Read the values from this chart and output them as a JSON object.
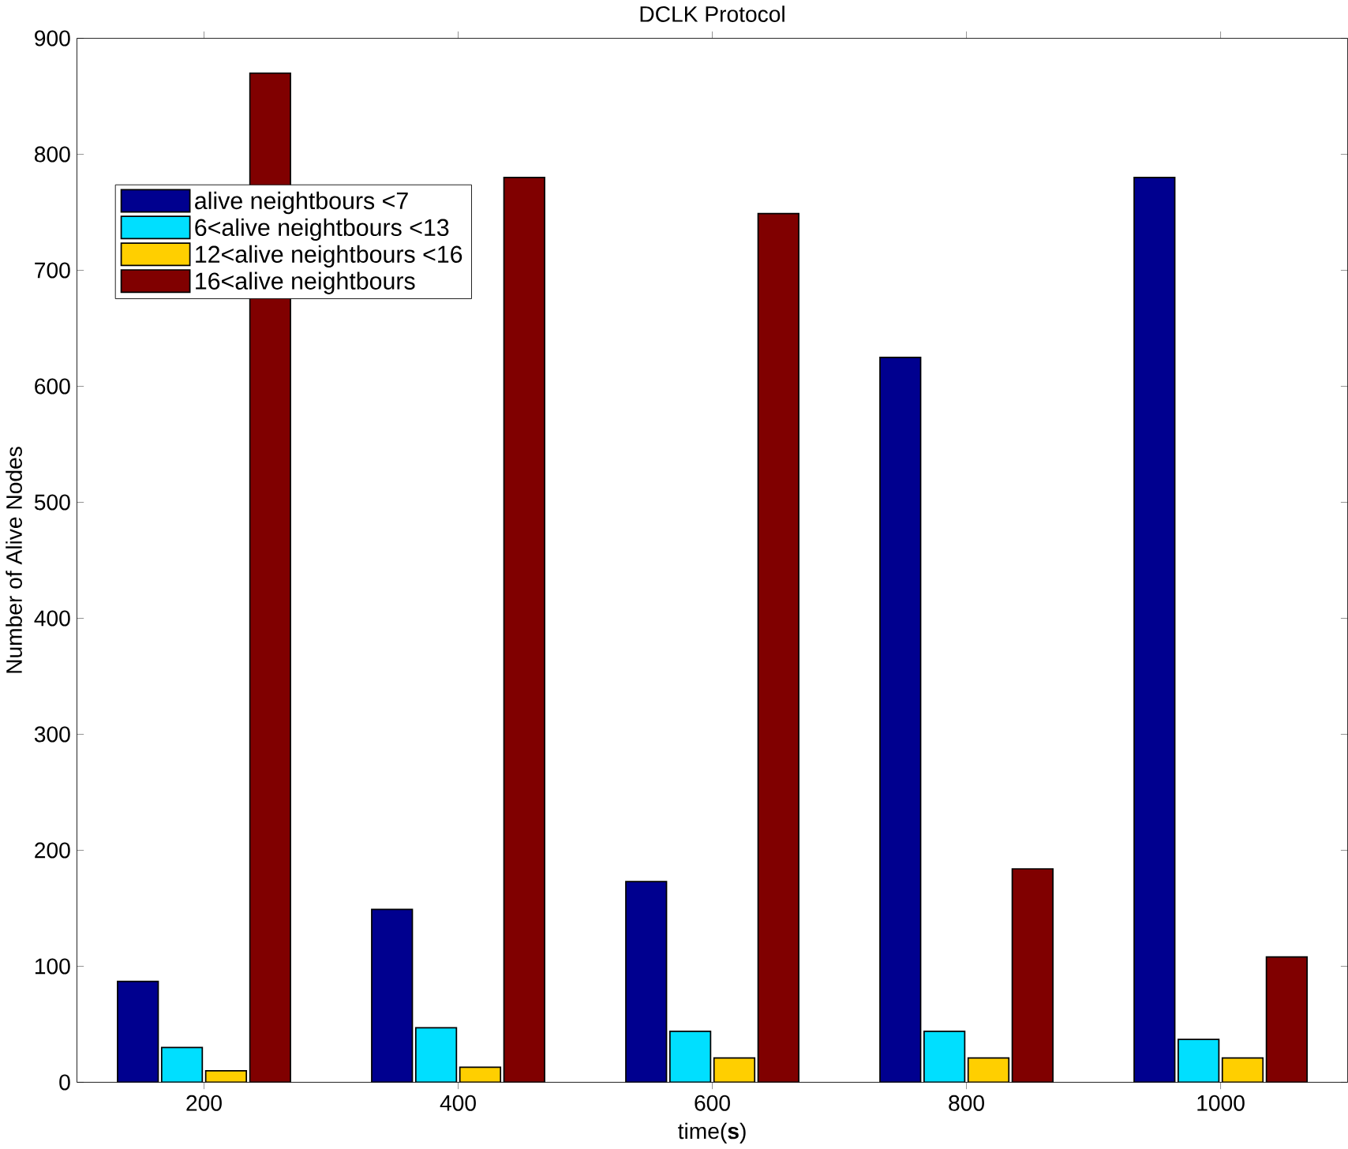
{
  "chart_data": {
    "type": "bar",
    "title": "DCLK Protocol",
    "xlabel": "time(**s**)",
    "ylabel": "Number of Alive Nodes",
    "categories": [
      "200",
      "400",
      "600",
      "800",
      "1000"
    ],
    "series": [
      {
        "name": "alive neightbours <7",
        "color": "#00008f",
        "values": [
          87,
          149,
          173,
          625,
          780
        ]
      },
      {
        "name": "6<alive neightbours <13",
        "color": "#00dfff",
        "values": [
          30,
          47,
          44,
          44,
          37
        ]
      },
      {
        "name": "12<alive neightbours <16",
        "color": "#ffcf00",
        "values": [
          10,
          13,
          21,
          21,
          21
        ]
      },
      {
        "name": "16<alive neightbours",
        "color": "#800000",
        "values": [
          870,
          780,
          749,
          184,
          108
        ]
      }
    ],
    "ylim": [
      0,
      900
    ],
    "yticks": [
      0,
      100,
      200,
      300,
      400,
      500,
      600,
      700,
      800,
      900
    ],
    "legend": "top left",
    "grid": false
  }
}
